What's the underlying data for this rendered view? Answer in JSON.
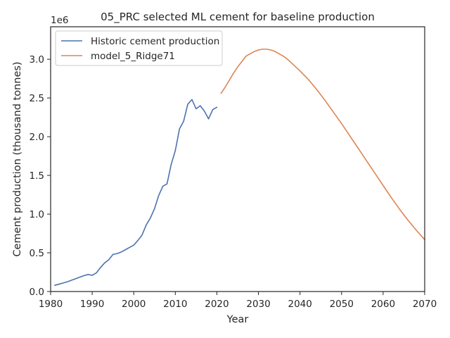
{
  "chart_data": {
    "type": "line",
    "title": "05_PRC selected ML cement for baseline production",
    "xlabel": "Year",
    "ylabel": "Cement production (thousand tonnes)",
    "y_scale_note": "1e6",
    "xlim": [
      1980,
      2070
    ],
    "ylim": [
      0,
      3.42
    ],
    "x_ticks": [
      1980,
      1990,
      2000,
      2010,
      2020,
      2030,
      2040,
      2050,
      2060,
      2070
    ],
    "y_ticks": [
      0.0,
      0.5,
      1.0,
      1.5,
      2.0,
      2.5,
      3.0
    ],
    "y_tick_labels": [
      "0.0",
      "0.5",
      "1.0",
      "1.5",
      "2.0",
      "2.5",
      "3.0"
    ],
    "legend_position": "top-left",
    "grid": false,
    "series": [
      {
        "name": "Historic cement production",
        "color": "#4c72b0",
        "x": [
          1981,
          1982,
          1983,
          1984,
          1985,
          1986,
          1987,
          1988,
          1989,
          1990,
          1991,
          1992,
          1993,
          1994,
          1995,
          1996,
          1997,
          1998,
          1999,
          2000,
          2001,
          2002,
          2003,
          2004,
          2005,
          2006,
          2007,
          2008,
          2009,
          2010,
          2011,
          2012,
          2013,
          2014,
          2015,
          2016,
          2017,
          2018,
          2019,
          2020
        ],
        "y": [
          0.08,
          0.095,
          0.11,
          0.125,
          0.145,
          0.165,
          0.185,
          0.205,
          0.22,
          0.21,
          0.24,
          0.31,
          0.37,
          0.41,
          0.48,
          0.49,
          0.51,
          0.54,
          0.57,
          0.6,
          0.66,
          0.73,
          0.86,
          0.95,
          1.07,
          1.24,
          1.36,
          1.39,
          1.64,
          1.82,
          2.1,
          2.2,
          2.42,
          2.48,
          2.36,
          2.4,
          2.33,
          2.23,
          2.35,
          2.38
        ]
      },
      {
        "name": "model_5_Ridge71",
        "color": "#dd8452",
        "x": [
          2021,
          2022,
          2023,
          2024,
          2025,
          2026,
          2027,
          2028,
          2029,
          2030,
          2031,
          2032,
          2033,
          2034,
          2035,
          2036,
          2037,
          2038,
          2039,
          2040,
          2042,
          2044,
          2046,
          2048,
          2050,
          2052,
          2054,
          2056,
          2058,
          2060,
          2062,
          2064,
          2066,
          2068,
          2070
        ],
        "y": [
          2.56,
          2.64,
          2.73,
          2.82,
          2.9,
          2.97,
          3.04,
          3.07,
          3.1,
          3.12,
          3.13,
          3.13,
          3.12,
          3.1,
          3.07,
          3.04,
          3.0,
          2.95,
          2.9,
          2.85,
          2.74,
          2.61,
          2.47,
          2.32,
          2.17,
          2.01,
          1.85,
          1.69,
          1.53,
          1.37,
          1.21,
          1.06,
          0.92,
          0.79,
          0.67
        ]
      }
    ]
  }
}
